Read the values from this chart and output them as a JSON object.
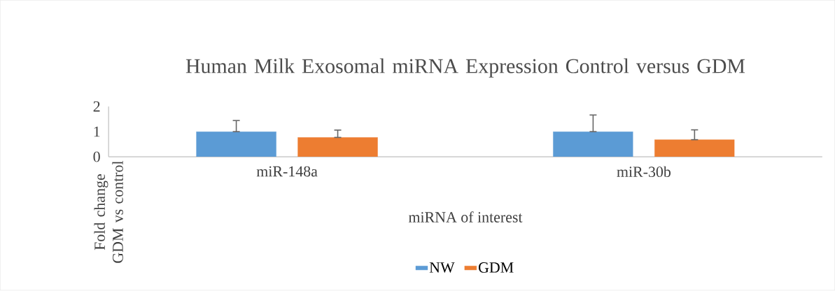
{
  "chart_data": {
    "type": "bar",
    "title": "Human Milk Exosomal miRNA Expression Control versus GDM",
    "xlabel": "miRNA of interest",
    "ylabel": "Fold change GDM vs control",
    "categories": [
      "miR-148a",
      "miR-30b"
    ],
    "series": [
      {
        "name": "NW",
        "color": "#5b9bd5",
        "values": [
          1.0,
          1.0
        ],
        "errors": [
          [
            1.0,
            1.44
          ],
          [
            1.0,
            1.66
          ]
        ]
      },
      {
        "name": "GDM",
        "color": "#ed7d31",
        "values": [
          0.77,
          0.68
        ],
        "errors": [
          [
            0.77,
            1.06
          ],
          [
            0.68,
            1.07
          ]
        ]
      }
    ],
    "ylim": [
      0,
      2
    ],
    "yticks": [
      0,
      1,
      2
    ],
    "legend": "bottom"
  }
}
